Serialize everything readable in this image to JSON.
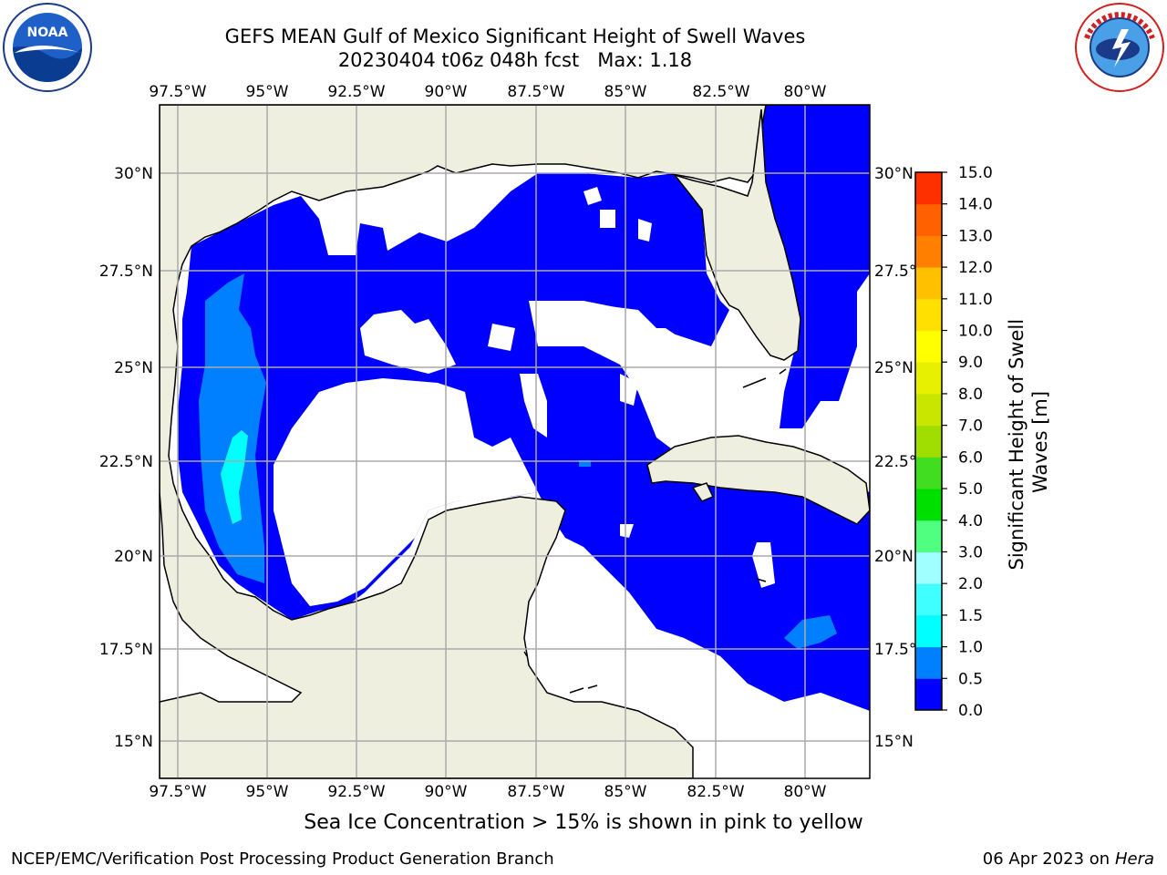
{
  "title": {
    "line1": "GEFS MEAN Gulf of Mexico Significant Height of Swell Waves",
    "line2": "20230404 t06z 048h fcst   Max: 1.18"
  },
  "map": {
    "lon_labels": [
      "97.5°W",
      "95°W",
      "92.5°W",
      "90°W",
      "87.5°W",
      "85°W",
      "82.5°W",
      "80°W"
    ],
    "lat_labels": [
      "30°N",
      "27.5°N",
      "25°N",
      "22.5°N",
      "20°N",
      "17.5°N",
      "15°N"
    ],
    "land_color": "#efefdf",
    "grid": true
  },
  "colorbar": {
    "label": "Significant Height of Swell Waves [m]",
    "ticks": [
      "0.0",
      "0.5",
      "1.0",
      "1.5",
      "2.0",
      "3.0",
      "4.0",
      "5.0",
      "6.0",
      "7.0",
      "8.0",
      "9.0",
      "10.0",
      "11.0",
      "12.0",
      "13.0",
      "14.0",
      "15.0"
    ],
    "colors": [
      "#0000ff",
      "#0080ff",
      "#00ffff",
      "#40ffff",
      "#a0ffff",
      "#50ff80",
      "#00e000",
      "#40dd20",
      "#a0dd00",
      "#c8e600",
      "#e6f000",
      "#ffff00",
      "#ffe000",
      "#ffc000",
      "#ff8000",
      "#ff6000",
      "#ff3000",
      "#ff0000"
    ]
  },
  "note": "Sea Ice Concentration > 15% is shown in pink to yellow",
  "footer": {
    "left": "NCEP/EMC/Verification Post Processing Product Generation Branch",
    "date": "06 Apr 2023 on ",
    "host": "Hera"
  },
  "logos": {
    "left": "noaa-logo",
    "right": "nws-logo"
  }
}
